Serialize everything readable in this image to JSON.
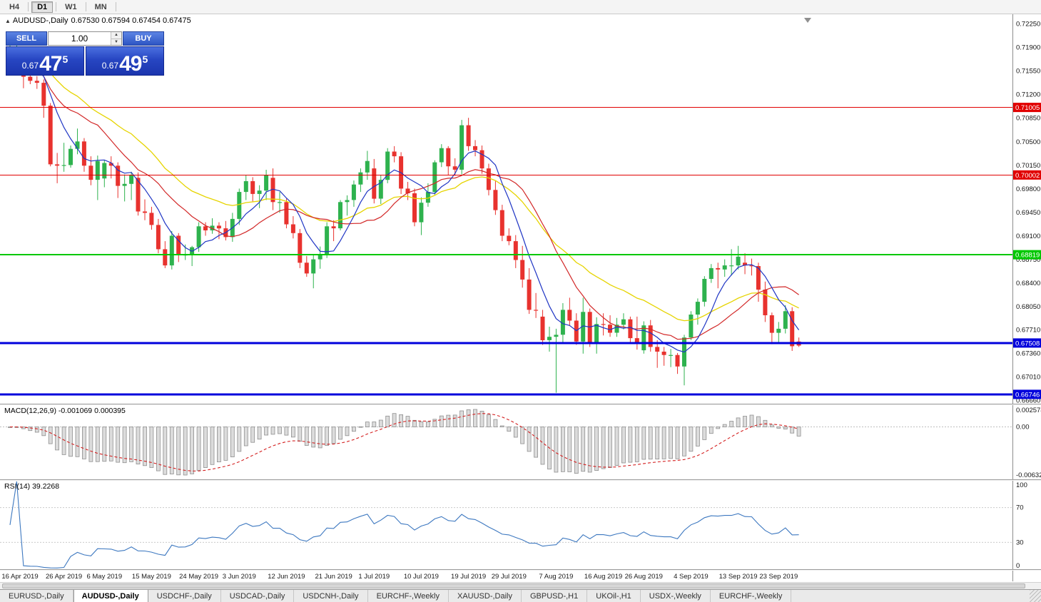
{
  "toolbar": {
    "timeframes": [
      "H4",
      "D1",
      "W1",
      "MN"
    ],
    "active": "D1"
  },
  "chart": {
    "symbol_timeframe": "AUDUSD-,Daily",
    "ohlc": "0.67530 0.67594 0.67454 0.67475"
  },
  "trade_panel": {
    "sell_label": "SELL",
    "buy_label": "BUY",
    "volume": "1.00",
    "bid_prefix": "0.67",
    "bid_big": "47",
    "bid_pip": "5",
    "ask_prefix": "0.67",
    "ask_big": "49",
    "ask_pip": "5"
  },
  "price_axis": {
    "labels": [
      "0.72250",
      "0.71900",
      "0.71550",
      "0.71200",
      "0.70850",
      "0.70500",
      "0.70150",
      "0.69800",
      "0.69450",
      "0.69100",
      "0.68750",
      "0.68400",
      "0.68050",
      "0.67710",
      "0.67360",
      "0.67010",
      "0.66660"
    ]
  },
  "macd_panel": {
    "label": "MACD(12,26,9) -0.001069 0.000395",
    "axis_top": "0.002574",
    "axis_zero": "0.00",
    "axis_bottom": "-0.006324"
  },
  "rsi_panel": {
    "label": "RSI(14) 39.2268",
    "axis": [
      100,
      70,
      30,
      0
    ]
  },
  "colors": {
    "up": "#2eb24e",
    "down": "#e8322e",
    "ma_fast": "#1f35c4",
    "ma_mid": "#d22828",
    "ma_slow": "#e6d400",
    "macd_hist_fill": "#dcdcdc",
    "macd_hist_stroke": "#8f8f8f",
    "macd_signal": "#d42020",
    "rsi_line": "#3d78c0"
  },
  "tabs": [
    {
      "label": "EURUSD-,Daily",
      "active": false
    },
    {
      "label": "AUDUSD-,Daily",
      "active": true
    },
    {
      "label": "USDCHF-,Daily",
      "active": false
    },
    {
      "label": "USDCAD-,Daily",
      "active": false
    },
    {
      "label": "USDCNH-,Daily",
      "active": false
    },
    {
      "label": "EURCHF-,Weekly",
      "active": false
    },
    {
      "label": "XAUUSD-,Daily",
      "active": false
    },
    {
      "label": "GBPUSD-,H1",
      "active": false
    },
    {
      "label": "UKOil-,H1",
      "active": false
    },
    {
      "label": "USDX-,Weekly",
      "active": false
    },
    {
      "label": "EURCHF-,Weekly",
      "active": false
    }
  ],
  "chart_data": {
    "type": "candlestick",
    "title": "AUDUSD-,Daily",
    "ohlc_current": {
      "open": 0.6753,
      "high": 0.67594,
      "low": 0.67454,
      "close": 0.67475
    },
    "ylim": [
      0.6666,
      0.7225
    ],
    "levels": [
      {
        "label": "0.71005",
        "price": 0.71005,
        "color": "#e10000",
        "width": 1
      },
      {
        "label": "0.70002",
        "price": 0.70002,
        "color": "#e10000",
        "width": 1
      },
      {
        "label": "0.68819",
        "price": 0.68819,
        "color": "#00c800",
        "width": 2
      },
      {
        "label": "0.67508",
        "price": 0.67508,
        "color": "#0000dc",
        "width": 3
      },
      {
        "label": "0.66746",
        "price": 0.66746,
        "color": "#0000dc",
        "width": 3
      }
    ],
    "moving_averages": [
      {
        "name": "fast",
        "type": "sma",
        "period": 6
      },
      {
        "name": "medium",
        "type": "sma",
        "period": 14
      },
      {
        "name": "slow",
        "type": "ema",
        "period": 24
      }
    ],
    "macd": {
      "params": "12,26,9",
      "main": -0.001069,
      "signal": 0.000395
    },
    "rsi": {
      "period": 14,
      "value": 39.2268
    },
    "x_labels": [
      [
        "16 Apr 2019",
        0
      ],
      [
        "26 Apr 2019",
        8
      ],
      [
        "6 May 2019",
        14
      ],
      [
        "15 May 2019",
        21
      ],
      [
        "24 May 2019",
        28
      ],
      [
        "3 Jun 2019",
        34
      ],
      [
        "12 Jun 2019",
        41
      ],
      [
        "21 Jun 2019",
        48
      ],
      [
        "1 Jul 2019",
        54
      ],
      [
        "10 Jul 2019",
        61
      ],
      [
        "19 Jul 2019",
        68
      ],
      [
        "29 Jul 2019",
        74
      ],
      [
        "7 Aug 2019",
        81
      ],
      [
        "16 Aug 2019",
        88
      ],
      [
        "26 Aug 2019",
        94
      ],
      [
        "4 Sep 2019",
        101
      ],
      [
        "13 Sep 2019",
        108
      ],
      [
        "23 Sep 2019",
        114
      ]
    ],
    "candles": [
      [
        0.717,
        0.7193,
        0.7163,
        0.7176
      ],
      [
        0.7176,
        0.7206,
        0.7172,
        0.7177
      ],
      [
        0.7177,
        0.7182,
        0.7129,
        0.7146
      ],
      [
        0.7146,
        0.7153,
        0.7135,
        0.714
      ],
      [
        0.714,
        0.7147,
        0.7128,
        0.7137
      ],
      [
        0.7137,
        0.7142,
        0.7085,
        0.7103
      ],
      [
        0.7103,
        0.7107,
        0.7013,
        0.7016
      ],
      [
        0.7016,
        0.7033,
        0.6988,
        0.7014
      ],
      [
        0.7014,
        0.7048,
        0.7005,
        0.7015
      ],
      [
        0.7015,
        0.7044,
        0.7011,
        0.7039
      ],
      [
        0.7039,
        0.7069,
        0.7031,
        0.705
      ],
      [
        0.705,
        0.7055,
        0.7005,
        0.7014
      ],
      [
        0.7014,
        0.7028,
        0.6985,
        0.6993
      ],
      [
        0.6993,
        0.7029,
        0.6963,
        0.7021
      ],
      [
        0.6995,
        0.7022,
        0.6982,
        0.7018
      ],
      [
        0.7018,
        0.7028,
        0.6995,
        0.7014
      ],
      [
        0.7014,
        0.7019,
        0.6966,
        0.6984
      ],
      [
        0.6984,
        0.7001,
        0.6961,
        0.6987
      ],
      [
        0.6987,
        0.7005,
        0.6963,
        0.7
      ],
      [
        0.6996,
        0.7004,
        0.694,
        0.6946
      ],
      [
        0.6946,
        0.6964,
        0.6933,
        0.6944
      ],
      [
        0.6944,
        0.6953,
        0.6919,
        0.6926
      ],
      [
        0.6926,
        0.6935,
        0.6884,
        0.689
      ],
      [
        0.689,
        0.6902,
        0.6862,
        0.6866
      ],
      [
        0.6866,
        0.6917,
        0.686,
        0.691
      ],
      [
        0.691,
        0.6914,
        0.6871,
        0.6881
      ],
      [
        0.6881,
        0.6897,
        0.6874,
        0.6882
      ],
      [
        0.6882,
        0.6895,
        0.6865,
        0.6893
      ],
      [
        0.6893,
        0.693,
        0.6886,
        0.6924
      ],
      [
        0.6924,
        0.693,
        0.691,
        0.6918
      ],
      [
        0.6918,
        0.6936,
        0.6913,
        0.6925
      ],
      [
        0.6925,
        0.693,
        0.6905,
        0.6921
      ],
      [
        0.6921,
        0.6932,
        0.6903,
        0.6908
      ],
      [
        0.6908,
        0.6944,
        0.6901,
        0.6935
      ],
      [
        0.6935,
        0.698,
        0.6926,
        0.6975
      ],
      [
        0.6975,
        0.7,
        0.6963,
        0.6991
      ],
      [
        0.6991,
        0.6997,
        0.6961,
        0.6972
      ],
      [
        0.6972,
        0.6985,
        0.6951,
        0.6977
      ],
      [
        0.6977,
        0.7008,
        0.6963,
        0.7
      ],
      [
        0.6996,
        0.701,
        0.6948,
        0.696
      ],
      [
        0.696,
        0.6975,
        0.6944,
        0.696
      ],
      [
        0.696,
        0.6965,
        0.6921,
        0.6927
      ],
      [
        0.6927,
        0.6939,
        0.6906,
        0.6914
      ],
      [
        0.6914,
        0.692,
        0.6862,
        0.687
      ],
      [
        0.687,
        0.688,
        0.6849,
        0.6854
      ],
      [
        0.6854,
        0.6883,
        0.6832,
        0.6875
      ],
      [
        0.6875,
        0.6894,
        0.6861,
        0.6881
      ],
      [
        0.6881,
        0.693,
        0.6877,
        0.6924
      ],
      [
        0.6924,
        0.6933,
        0.6902,
        0.6921
      ],
      [
        0.6921,
        0.6963,
        0.6918,
        0.696
      ],
      [
        0.696,
        0.697,
        0.694,
        0.6963
      ],
      [
        0.6963,
        0.6992,
        0.6953,
        0.6986
      ],
      [
        0.6986,
        0.701,
        0.6975,
        0.7004
      ],
      [
        0.7004,
        0.7036,
        0.6993,
        0.7021
      ],
      [
        0.701,
        0.7024,
        0.6958,
        0.6965
      ],
      [
        0.6965,
        0.7,
        0.6957,
        0.6993
      ],
      [
        0.6993,
        0.704,
        0.6988,
        0.7035
      ],
      [
        0.7035,
        0.7043,
        0.7019,
        0.7028
      ],
      [
        0.7028,
        0.7034,
        0.6972,
        0.698
      ],
      [
        0.698,
        0.699,
        0.6963,
        0.6973
      ],
      [
        0.6973,
        0.698,
        0.6924,
        0.693
      ],
      [
        0.693,
        0.6967,
        0.6911,
        0.6959
      ],
      [
        0.6959,
        0.6988,
        0.6953,
        0.6975
      ],
      [
        0.6975,
        0.7022,
        0.6971,
        0.7019
      ],
      [
        0.7019,
        0.7046,
        0.7012,
        0.704
      ],
      [
        0.704,
        0.7043,
        0.7,
        0.7013
      ],
      [
        0.7013,
        0.7025,
        0.6999,
        0.7008
      ],
      [
        0.7008,
        0.7082,
        0.7001,
        0.7074
      ],
      [
        0.7074,
        0.7085,
        0.7036,
        0.7043
      ],
      [
        0.7043,
        0.7052,
        0.7028,
        0.7037
      ],
      [
        0.7037,
        0.7044,
        0.7002,
        0.701
      ],
      [
        0.701,
        0.7017,
        0.697,
        0.6978
      ],
      [
        0.6978,
        0.6991,
        0.6941,
        0.6948
      ],
      [
        0.6948,
        0.6956,
        0.6902,
        0.691
      ],
      [
        0.691,
        0.6921,
        0.6896,
        0.6902
      ],
      [
        0.6902,
        0.6911,
        0.6862,
        0.6874
      ],
      [
        0.6874,
        0.6895,
        0.6833,
        0.6845
      ],
      [
        0.6845,
        0.6862,
        0.6794,
        0.68
      ],
      [
        0.68,
        0.6825,
        0.6788,
        0.6799
      ],
      [
        0.679,
        0.68,
        0.6748,
        0.6755
      ],
      [
        0.6755,
        0.6775,
        0.6738,
        0.676
      ],
      [
        0.676,
        0.6772,
        0.6677,
        0.6763
      ],
      [
        0.6763,
        0.681,
        0.6752,
        0.68
      ],
      [
        0.68,
        0.6818,
        0.6776,
        0.6784
      ],
      [
        0.6784,
        0.6795,
        0.6748,
        0.6753
      ],
      [
        0.6753,
        0.6818,
        0.6735,
        0.6797
      ],
      [
        0.6797,
        0.6802,
        0.6745,
        0.675
      ],
      [
        0.675,
        0.6789,
        0.6735,
        0.6779
      ],
      [
        0.6779,
        0.6795,
        0.6762,
        0.6778
      ],
      [
        0.6778,
        0.6792,
        0.676,
        0.6766
      ],
      [
        0.6766,
        0.6788,
        0.676,
        0.6778
      ],
      [
        0.6778,
        0.6795,
        0.6771,
        0.6786
      ],
      [
        0.6786,
        0.679,
        0.675,
        0.6758
      ],
      [
        0.6758,
        0.679,
        0.6741,
        0.6751
      ],
      [
        0.674,
        0.6783,
        0.6735,
        0.6777
      ],
      [
        0.6777,
        0.6785,
        0.6738,
        0.6745
      ],
      [
        0.6745,
        0.6755,
        0.6714,
        0.6738
      ],
      [
        0.6738,
        0.6745,
        0.6717,
        0.6733
      ],
      [
        0.6733,
        0.6742,
        0.6715,
        0.6733
      ],
      [
        0.6733,
        0.6736,
        0.6705,
        0.6716
      ],
      [
        0.6716,
        0.6763,
        0.6688,
        0.6759
      ],
      [
        0.6759,
        0.6798,
        0.6755,
        0.6793
      ],
      [
        0.6793,
        0.6817,
        0.6778,
        0.6812
      ],
      [
        0.6812,
        0.685,
        0.6805,
        0.6846
      ],
      [
        0.6846,
        0.6868,
        0.684,
        0.6862
      ],
      [
        0.6862,
        0.687,
        0.6832,
        0.686
      ],
      [
        0.686,
        0.6875,
        0.6849,
        0.6866
      ],
      [
        0.6866,
        0.689,
        0.6851,
        0.6866
      ],
      [
        0.6866,
        0.6895,
        0.686,
        0.6879
      ],
      [
        0.687,
        0.6884,
        0.6853,
        0.6866
      ],
      [
        0.6866,
        0.6876,
        0.6851,
        0.6865
      ],
      [
        0.6865,
        0.687,
        0.6812,
        0.683
      ],
      [
        0.683,
        0.6842,
        0.6782,
        0.6792
      ],
      [
        0.6792,
        0.6796,
        0.6749,
        0.6766
      ],
      [
        0.6766,
        0.6782,
        0.6752,
        0.6772
      ],
      [
        0.6772,
        0.6807,
        0.6765,
        0.6798
      ],
      [
        0.6798,
        0.6804,
        0.6739,
        0.6746
      ],
      [
        0.6753,
        0.6759,
        0.6745,
        0.6747
      ]
    ]
  }
}
